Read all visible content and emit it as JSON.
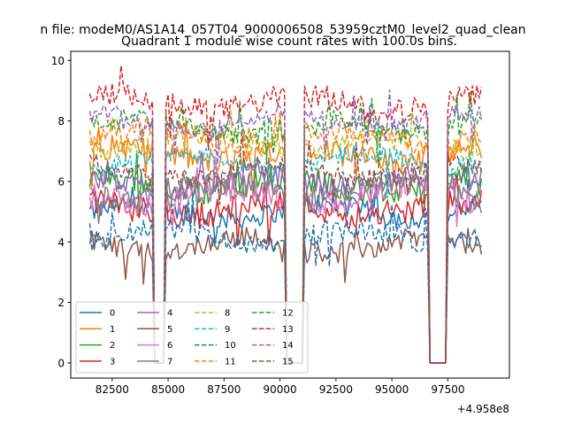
{
  "chart_data": {
    "type": "line",
    "suptitle": "n file: modeM0/AS1A14_057T04_9000006508_53959cztM0_level2_quad_clean",
    "title": "Quadrant 1 module wise count rates with 100.0s bins.",
    "xlabel": "",
    "ylabel": "",
    "offset_text": "+4.958e8",
    "x_offset": 495800000,
    "xlim": [
      80650,
      100250
    ],
    "ylim": [
      -0.5,
      10.3
    ],
    "x_ticks": [
      82500,
      85000,
      87500,
      90000,
      92500,
      95000,
      97500
    ],
    "y_ticks": [
      0,
      2,
      4,
      6,
      8,
      10
    ],
    "x_start": 81500,
    "x_end": 99000,
    "bin": 100,
    "gaps": [
      [
        84400,
        84800
      ],
      [
        90300,
        91000
      ],
      [
        96700,
        97400
      ]
    ],
    "grid": false,
    "legend_position": "lower-left",
    "series": [
      {
        "name": "0",
        "color": "#1f77b4",
        "dash": "solid",
        "mean": 5.0,
        "amp": 0.35
      },
      {
        "name": "1",
        "color": "#ff7f0e",
        "dash": "solid",
        "mean": 6.9,
        "amp": 0.4
      },
      {
        "name": "2",
        "color": "#2ca02c",
        "dash": "solid",
        "mean": 5.9,
        "amp": 0.45
      },
      {
        "name": "3",
        "color": "#d62728",
        "dash": "solid",
        "mean": 5.1,
        "amp": 0.45
      },
      {
        "name": "4",
        "color": "#9467bd",
        "dash": "solid",
        "mean": 6.0,
        "amp": 0.4
      },
      {
        "name": "5",
        "color": "#8c564b",
        "dash": "solid",
        "mean": 3.9,
        "amp": 0.35
      },
      {
        "name": "6",
        "color": "#e377c2",
        "dash": "solid",
        "mean": 5.5,
        "amp": 0.45
      },
      {
        "name": "7",
        "color": "#7f7f7f",
        "dash": "solid",
        "mean": 5.7,
        "amp": 0.4
      },
      {
        "name": "8",
        "color": "#bcbd22",
        "dash": "dashed",
        "mean": 7.3,
        "amp": 0.35
      },
      {
        "name": "9",
        "color": "#17becf",
        "dash": "dashed",
        "mean": 6.7,
        "amp": 0.3
      },
      {
        "name": "10",
        "color": "#1f77b4",
        "dash": "dashed",
        "mean": 4.2,
        "amp": 0.35
      },
      {
        "name": "11",
        "color": "#ff7f0e",
        "dash": "dashed",
        "mean": 7.5,
        "amp": 0.35
      },
      {
        "name": "12",
        "color": "#2ca02c",
        "dash": "dashed",
        "mean": 7.8,
        "amp": 0.35
      },
      {
        "name": "13",
        "color": "#d62728",
        "dash": "dashed",
        "mean": 8.6,
        "amp": 0.4
      },
      {
        "name": "14",
        "color": "#9467bd",
        "dash": "dashed",
        "mean": 8.0,
        "amp": 0.3
      },
      {
        "name": "15",
        "color": "#8c564b",
        "dash": "dashed",
        "mean": 6.3,
        "amp": 0.35
      }
    ]
  }
}
